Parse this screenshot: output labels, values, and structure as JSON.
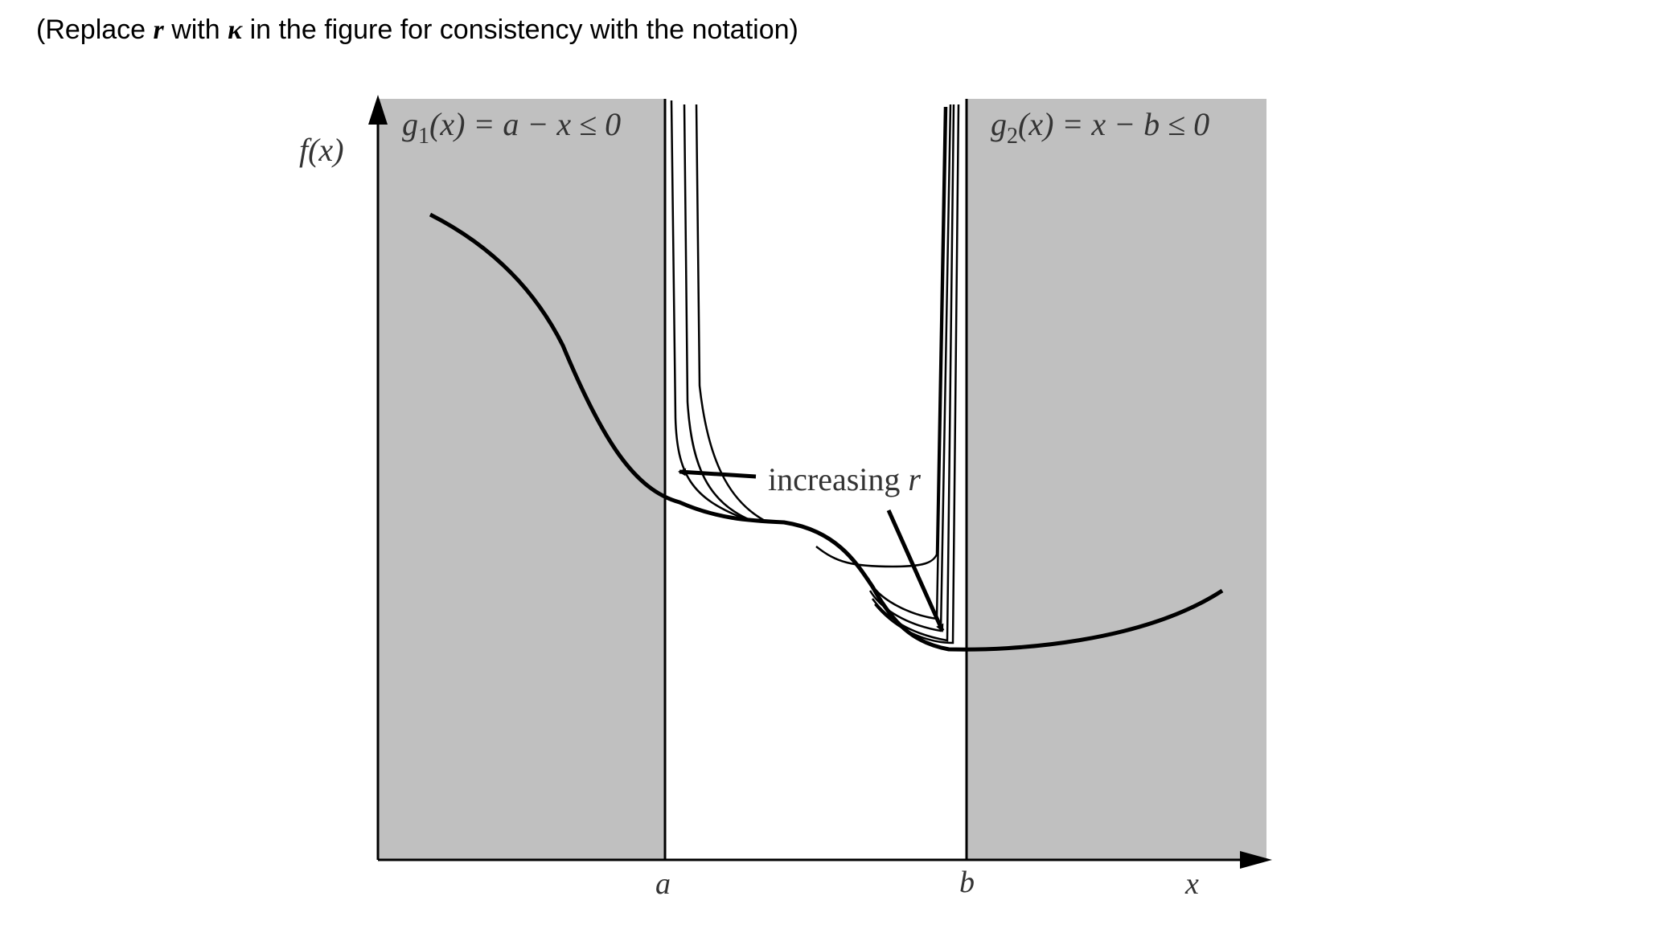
{
  "note": {
    "prefix": "(Replace ",
    "var_old": "r",
    "middle": " with ",
    "var_new": "κ",
    "suffix": " in the figure for consistency with the notation)"
  },
  "figure": {
    "y_axis_label": "f(x)",
    "x_axis_label": "x",
    "tick_a": "a",
    "tick_b": "b",
    "constraint_left": {
      "g": "g",
      "sub": "1",
      "rest": "(x) = a − x ≤ 0"
    },
    "constraint_right": {
      "g": "g",
      "sub": "2",
      "rest": "(x) = x − b ≤ 0"
    },
    "annotation": {
      "text": "increasing ",
      "var": "r"
    },
    "colors": {
      "infeasible_region": "#c0c0c0",
      "curves": "#000000"
    }
  }
}
